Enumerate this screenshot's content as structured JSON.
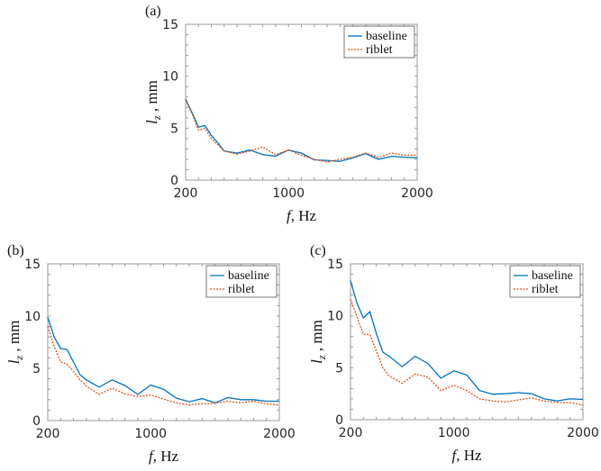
{
  "colors": {
    "baseline": "#0072BD",
    "riblet": "#D95319",
    "axis": "#808080"
  },
  "chart_data": [
    {
      "type": "line",
      "panel_label": "(a)",
      "xlabel_var": "f",
      "xlabel_unit": ", Hz",
      "ylabel_var": "l",
      "ylabel_sub": "z",
      "ylabel_unit": " , mm",
      "xlim": [
        200,
        2000
      ],
      "ylim": [
        0,
        15
      ],
      "xticks": [
        200,
        1000,
        2000
      ],
      "yticks": [
        0,
        5,
        10,
        15
      ],
      "grid": false,
      "legend_position": "top-right",
      "x": [
        200,
        250,
        300,
        350,
        400,
        450,
        500,
        600,
        700,
        800,
        900,
        1000,
        1100,
        1200,
        1300,
        1400,
        1500,
        1600,
        1700,
        1800,
        1900,
        2000
      ],
      "series": [
        {
          "name": "baseline",
          "style": "solid",
          "values": [
            7.8,
            6.5,
            5.1,
            5.25,
            4.3,
            3.6,
            2.8,
            2.6,
            2.9,
            2.45,
            2.3,
            2.9,
            2.6,
            1.95,
            1.9,
            1.8,
            2.15,
            2.55,
            2.0,
            2.3,
            2.2,
            2.15
          ]
        },
        {
          "name": "riblet",
          "style": "dotted",
          "values": [
            7.7,
            6.4,
            4.8,
            5.0,
            4.0,
            3.4,
            2.8,
            2.5,
            2.8,
            3.2,
            2.45,
            2.9,
            2.4,
            2.0,
            1.75,
            2.0,
            2.2,
            2.6,
            2.2,
            2.6,
            2.4,
            2.4
          ]
        }
      ]
    },
    {
      "type": "line",
      "panel_label": "(b)",
      "xlabel_var": "f",
      "xlabel_unit": ", Hz",
      "ylabel_var": "l",
      "ylabel_sub": "z",
      "ylabel_unit": " , mm",
      "xlim": [
        200,
        2000
      ],
      "ylim": [
        0,
        15
      ],
      "xticks": [
        200,
        1000,
        2000
      ],
      "yticks": [
        0,
        5,
        10,
        15
      ],
      "grid": false,
      "legend_position": "top-right",
      "x": [
        200,
        250,
        300,
        350,
        400,
        450,
        500,
        600,
        700,
        800,
        900,
        1000,
        1100,
        1200,
        1300,
        1400,
        1500,
        1600,
        1700,
        1800,
        1900,
        2000
      ],
      "series": [
        {
          "name": "baseline",
          "style": "solid",
          "values": [
            9.9,
            8.0,
            6.9,
            6.8,
            5.6,
            4.4,
            3.9,
            3.2,
            3.9,
            3.35,
            2.5,
            3.4,
            3.0,
            2.15,
            1.8,
            2.1,
            1.7,
            2.2,
            2.0,
            2.0,
            1.85,
            1.85
          ]
        },
        {
          "name": "riblet",
          "style": "dotted",
          "values": [
            9.0,
            7.1,
            5.6,
            5.4,
            4.7,
            3.9,
            3.3,
            2.5,
            3.1,
            2.55,
            2.3,
            2.45,
            2.05,
            1.7,
            1.5,
            1.6,
            1.65,
            1.85,
            1.7,
            1.85,
            1.6,
            1.5
          ]
        }
      ]
    },
    {
      "type": "line",
      "panel_label": "(c)",
      "xlabel_var": "f",
      "xlabel_unit": ", Hz",
      "ylabel_var": "l",
      "ylabel_sub": "z",
      "ylabel_unit": " , mm",
      "xlim": [
        200,
        2000
      ],
      "ylim": [
        0,
        15
      ],
      "xticks": [
        200,
        1000,
        2000
      ],
      "yticks": [
        0,
        5,
        10,
        15
      ],
      "grid": false,
      "legend_position": "top-right",
      "x": [
        200,
        250,
        300,
        350,
        400,
        450,
        500,
        600,
        700,
        800,
        900,
        1000,
        1100,
        1200,
        1300,
        1400,
        1500,
        1600,
        1700,
        1800,
        1900,
        2000
      ],
      "series": [
        {
          "name": "baseline",
          "style": "solid",
          "values": [
            13.4,
            11.2,
            9.8,
            10.4,
            8.3,
            6.5,
            6.1,
            5.1,
            6.1,
            5.4,
            4.0,
            4.7,
            4.3,
            2.8,
            2.45,
            2.5,
            2.6,
            2.5,
            2.0,
            1.8,
            2.0,
            1.95
          ]
        },
        {
          "name": "riblet",
          "style": "dotted",
          "values": [
            11.6,
            9.9,
            8.2,
            8.2,
            6.6,
            5.0,
            4.2,
            3.5,
            4.4,
            4.1,
            2.8,
            3.3,
            2.8,
            2.0,
            1.8,
            1.7,
            1.9,
            2.1,
            1.8,
            1.65,
            1.65,
            1.4
          ]
        }
      ]
    }
  ]
}
